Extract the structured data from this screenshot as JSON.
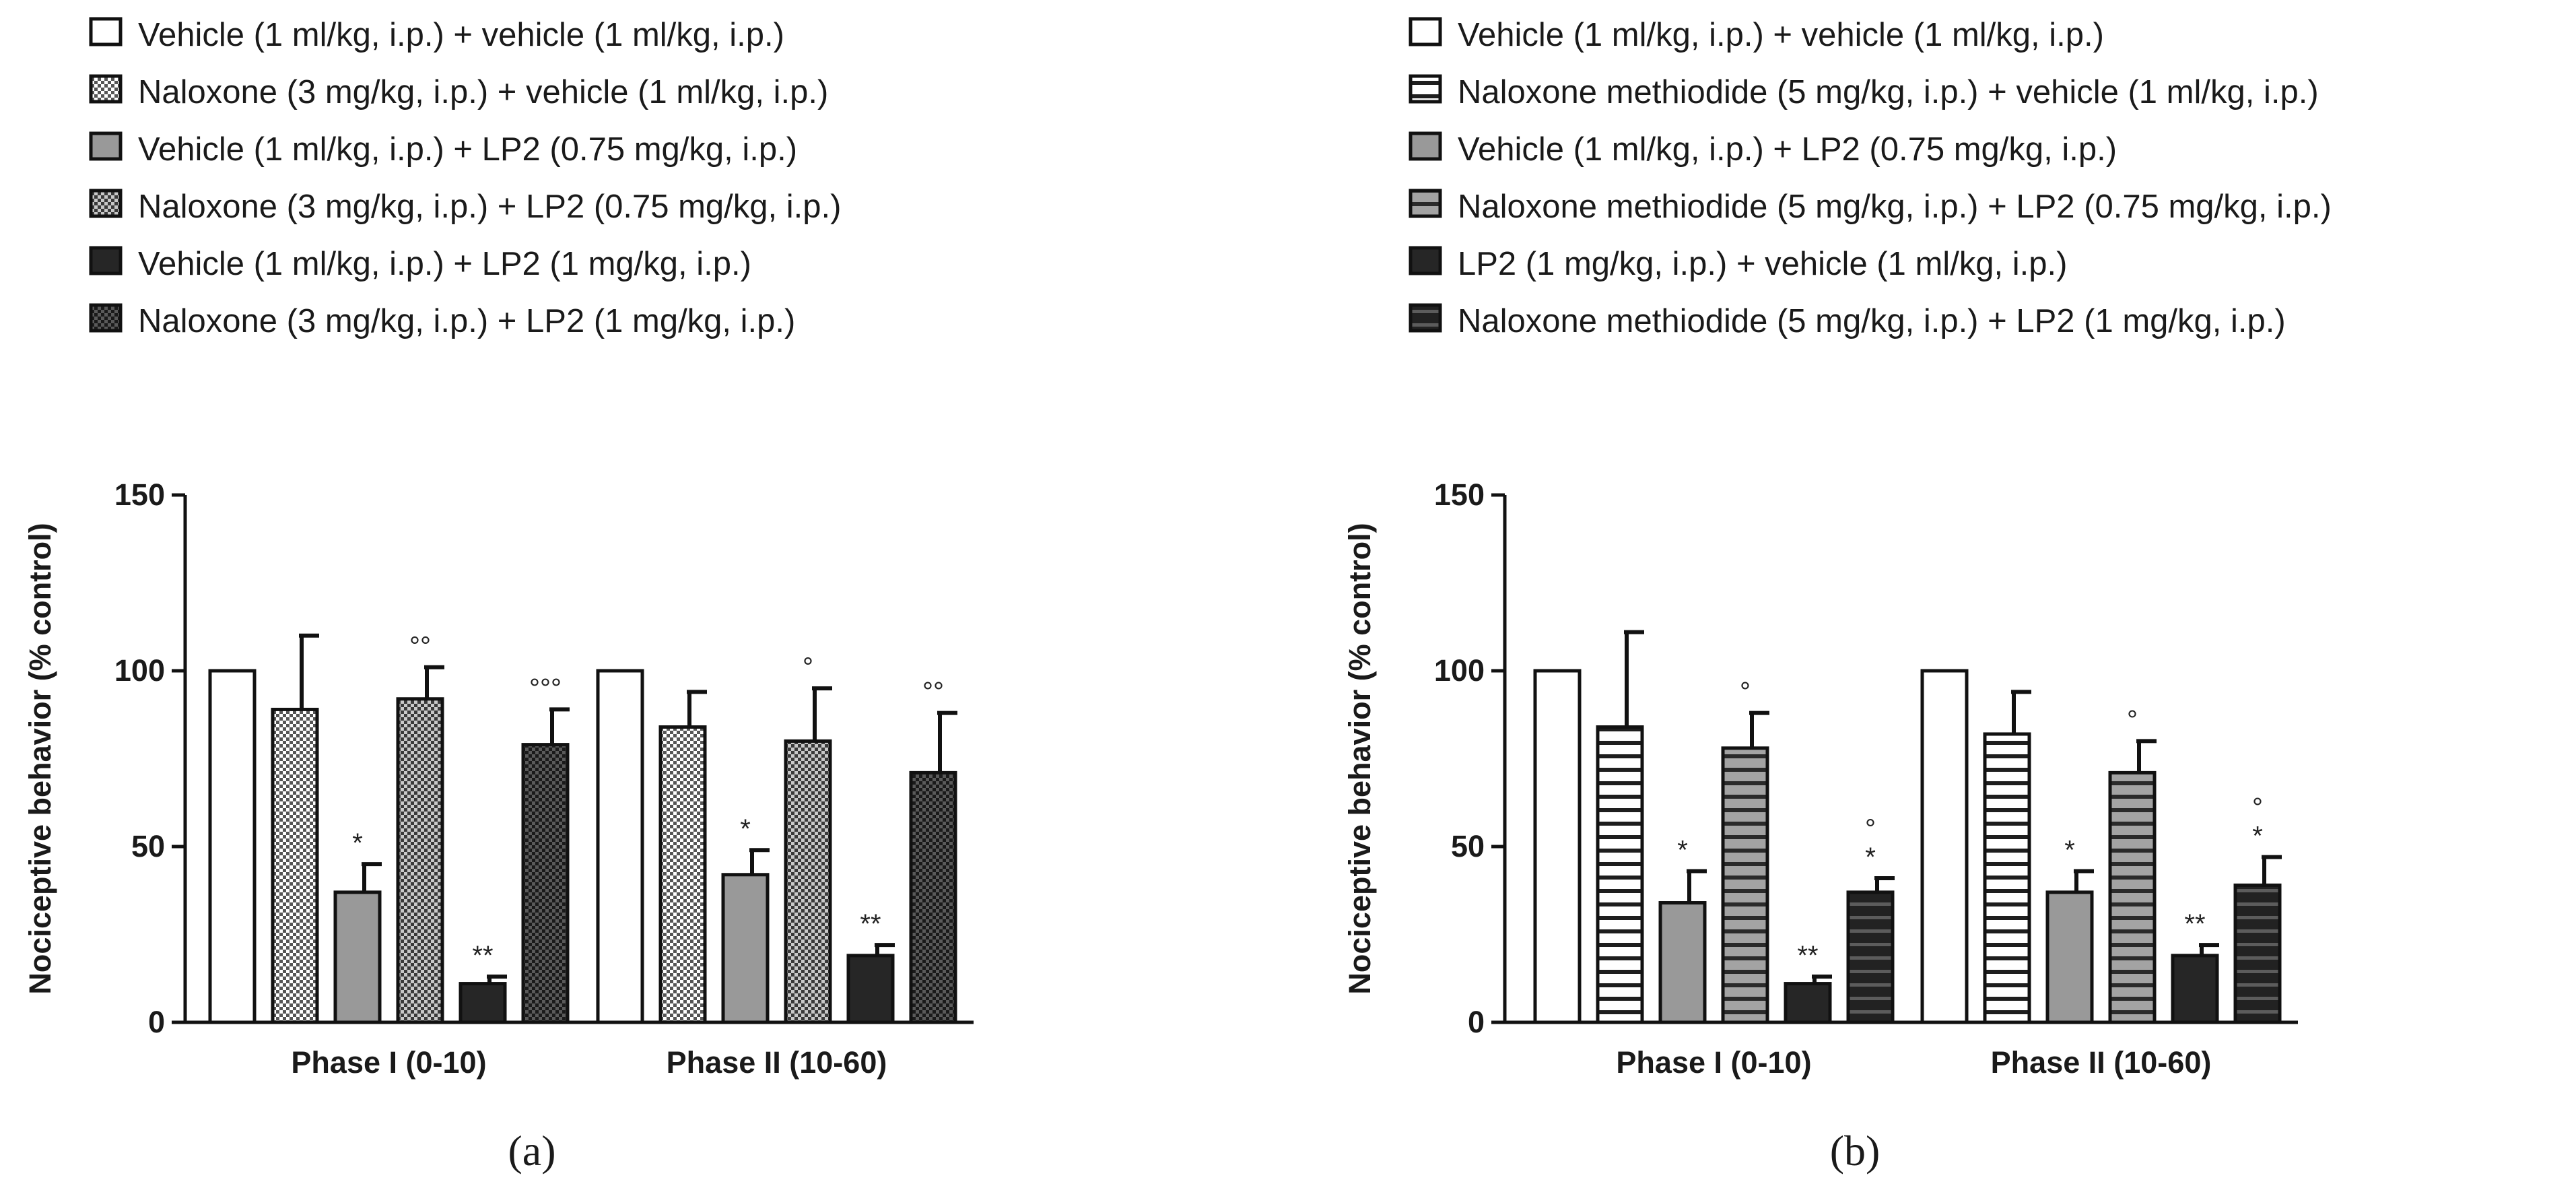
{
  "chart_data": [
    {
      "type": "bar",
      "panel_label": "(a)",
      "ylabel": "Nociceptive behavior (% control)",
      "xlabel": "",
      "ylim": [
        0,
        150
      ],
      "yticks": [
        0,
        50,
        100,
        150
      ],
      "categories": [
        "Phase I (0-10)",
        "Phase II (10-60)"
      ],
      "series": [
        {
          "name": "Vehicle (1 ml/kg, i.p.) + vehicle (1 ml/kg, i.p.)",
          "fill": "white",
          "values": [
            100,
            100
          ],
          "errors": [
            0,
            0
          ],
          "annotations": [
            "",
            ""
          ]
        },
        {
          "name": "Naloxone (3 mg/kg, i.p.) + vehicle (1 ml/kg, i.p.)",
          "fill": "checker-light",
          "values": [
            89,
            84
          ],
          "errors": [
            21,
            10
          ],
          "annotations": [
            "",
            ""
          ]
        },
        {
          "name": "Vehicle (1 ml/kg, i.p.) + LP2 (0.75 mg/kg, i.p.)",
          "fill": "gray",
          "values": [
            37,
            42
          ],
          "errors": [
            8,
            7
          ],
          "annotations": [
            "*",
            "*"
          ]
        },
        {
          "name": "Naloxone (3 mg/kg, i.p.) + LP2 (0.75 mg/kg, i.p.)",
          "fill": "checker-mid",
          "values": [
            92,
            80
          ],
          "errors": [
            9,
            15
          ],
          "annotations": [
            "°°",
            "°"
          ]
        },
        {
          "name": "Vehicle (1 ml/kg, i.p.) + LP2 (1 mg/kg, i.p.)",
          "fill": "dark",
          "values": [
            11,
            19
          ],
          "errors": [
            2,
            3
          ],
          "annotations": [
            "**",
            "**"
          ]
        },
        {
          "name": "Naloxone (3 mg/kg, i.p.) + LP2 (1 mg/kg, i.p.)",
          "fill": "checker-dark",
          "values": [
            79,
            71
          ],
          "errors": [
            10,
            17
          ],
          "annotations": [
            "°°°",
            "°°"
          ]
        }
      ]
    },
    {
      "type": "bar",
      "panel_label": "(b)",
      "ylabel": "Nociceptive behavior (% control)",
      "xlabel": "",
      "ylim": [
        0,
        150
      ],
      "yticks": [
        0,
        50,
        100,
        150
      ],
      "categories": [
        "Phase I (0-10)",
        "Phase II (10-60)"
      ],
      "series": [
        {
          "name": "Vehicle (1 ml/kg, i.p.) + vehicle (1 ml/kg, i.p.)",
          "fill": "white",
          "values": [
            100,
            100
          ],
          "errors": [
            0,
            0
          ],
          "annotations": [
            "",
            ""
          ]
        },
        {
          "name": "Naloxone methiodide (5 mg/kg, i.p.) + vehicle (1 ml/kg, i.p.)",
          "fill": "stripe-light",
          "values": [
            84,
            82
          ],
          "errors": [
            27,
            12
          ],
          "annotations": [
            "",
            ""
          ]
        },
        {
          "name": "Vehicle (1 ml/kg, i.p.) + LP2 (0.75 mg/kg, i.p.)",
          "fill": "gray",
          "values": [
            34,
            37
          ],
          "errors": [
            9,
            6
          ],
          "annotations": [
            "*",
            "*"
          ]
        },
        {
          "name": "Naloxone methiodide (5 mg/kg, i.p.) + LP2 (0.75 mg/kg, i.p.)",
          "fill": "stripe-mid",
          "values": [
            78,
            71
          ],
          "errors": [
            10,
            9
          ],
          "annotations": [
            "°",
            "°"
          ]
        },
        {
          "name": "LP2 (1 mg/kg, i.p.) + vehicle (1 ml/kg, i.p.)",
          "fill": "dark",
          "values": [
            11,
            19
          ],
          "errors": [
            2,
            3
          ],
          "annotations": [
            "**",
            "**"
          ]
        },
        {
          "name": "Naloxone methiodide (5 mg/kg, i.p.) + LP2 (1 mg/kg, i.p.)",
          "fill": "stripe-dark",
          "values": [
            37,
            39
          ],
          "errors": [
            4,
            8
          ],
          "annotations": [
            "°*",
            "°*"
          ]
        }
      ]
    }
  ]
}
